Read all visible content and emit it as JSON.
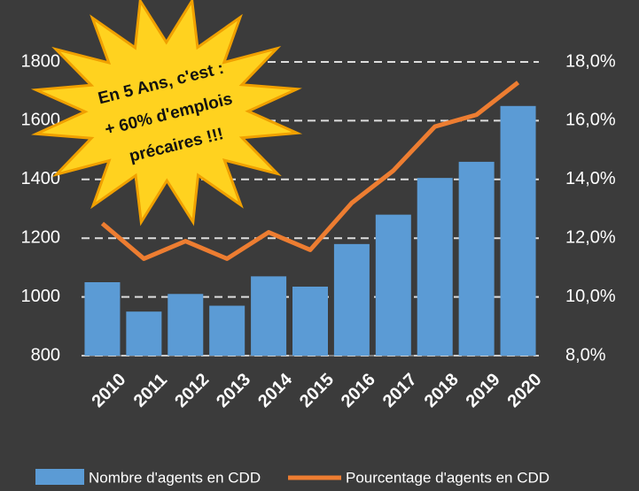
{
  "chart_data": {
    "type": "bar-line",
    "annotation": [
      "En 5 Ans, c'est :",
      "+ 60% d'emplois",
      "précaires !!!"
    ],
    "categories": [
      "2010",
      "2011",
      "2012",
      "2013",
      "2014",
      "2015",
      "2016",
      "2017",
      "2018",
      "2019",
      "2020"
    ],
    "series": [
      {
        "name": "Nombre d'agents en CDD",
        "type": "bar",
        "color": "#5b9bd5",
        "values": [
          1050,
          950,
          1010,
          970,
          1070,
          1035,
          1180,
          1280,
          1405,
          1460,
          1650
        ]
      },
      {
        "name": "Pourcentage d'agents en CDD",
        "type": "line",
        "axis": "y2",
        "color": "#ed7d31",
        "values": [
          12.5,
          11.3,
          11.9,
          11.3,
          12.2,
          11.6,
          13.2,
          14.3,
          15.8,
          16.2,
          17.3
        ]
      }
    ],
    "ylim": [
      800,
      1800
    ],
    "yticks": [
      800,
      1000,
      1200,
      1400,
      1600,
      1800
    ],
    "y2lim": [
      8,
      18
    ],
    "y2ticks": [
      {
        "value": 8,
        "label": "8,0%"
      },
      {
        "value": 10,
        "label": "10,0%"
      },
      {
        "value": 12,
        "label": "12,0%"
      },
      {
        "value": 14,
        "label": "14,0%"
      },
      {
        "value": 16,
        "label": "16,0%"
      },
      {
        "value": 18,
        "label": "18,0%"
      }
    ],
    "grid": true,
    "legend": "bottom"
  }
}
